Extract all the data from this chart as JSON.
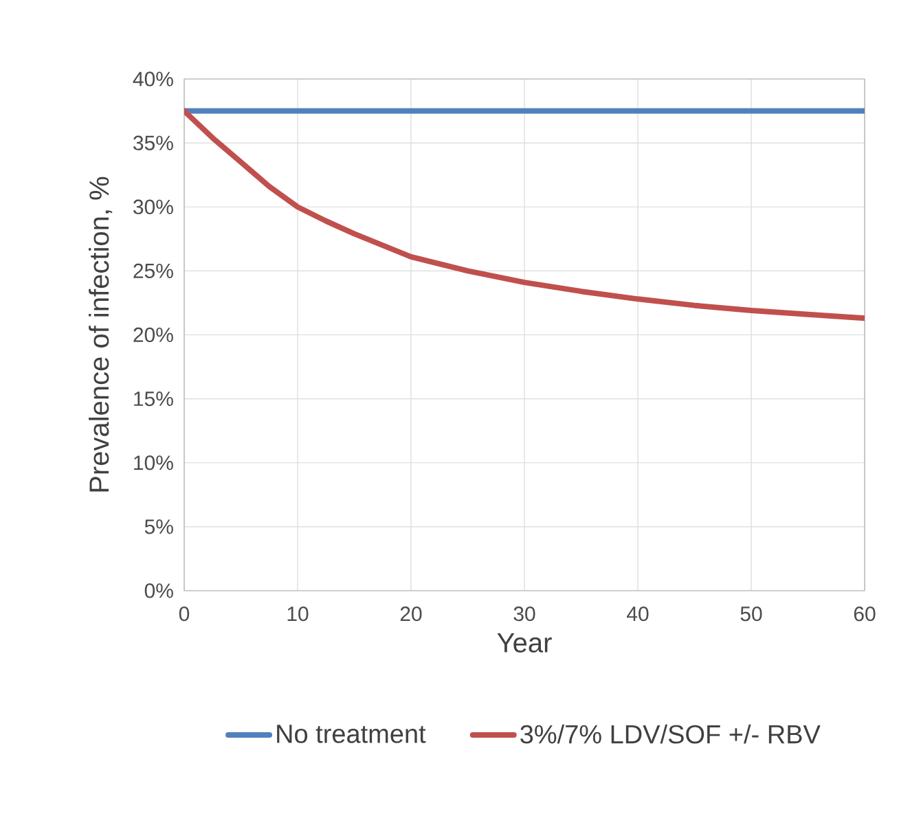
{
  "chart_data": {
    "type": "line",
    "xlabel": "Year",
    "ylabel": "Prevalence of infection, %",
    "xlim": [
      0,
      60
    ],
    "xticks": [
      0,
      10,
      20,
      30,
      40,
      50,
      60
    ],
    "ylim": [
      0,
      40
    ],
    "yticks": [
      {
        "value": 0,
        "label": "0%"
      },
      {
        "value": 5,
        "label": "5%"
      },
      {
        "value": 10,
        "label": "10%"
      },
      {
        "value": 15,
        "label": "15%"
      },
      {
        "value": 20,
        "label": "20%"
      },
      {
        "value": 25,
        "label": "25%"
      },
      {
        "value": 30,
        "label": "30%"
      },
      {
        "value": 35,
        "label": "35%"
      },
      {
        "value": 40,
        "label": "40%"
      }
    ],
    "grid": true,
    "legend": "bottom",
    "marker": "none",
    "line_style": "solid",
    "x": [
      0,
      2.5,
      5,
      7.5,
      10,
      12.5,
      15,
      17.5,
      20,
      25,
      30,
      35,
      40,
      45,
      50,
      55,
      60
    ],
    "series": [
      {
        "name": "No treatment",
        "color": "#4f81bd",
        "values": [
          37.5,
          37.5,
          37.5,
          37.5,
          37.5,
          37.5,
          37.5,
          37.5,
          37.5,
          37.5,
          37.5,
          37.5,
          37.5,
          37.5,
          37.5,
          37.5,
          37.5
        ]
      },
      {
        "name": "3%/7% LDV/SOF +/- RBV",
        "color": "#c0504d",
        "values": [
          37.5,
          35.4,
          33.5,
          31.6,
          30.0,
          28.9,
          27.9,
          27.0,
          26.1,
          25.0,
          24.1,
          23.4,
          22.8,
          22.3,
          21.9,
          21.6,
          21.3
        ]
      }
    ]
  }
}
